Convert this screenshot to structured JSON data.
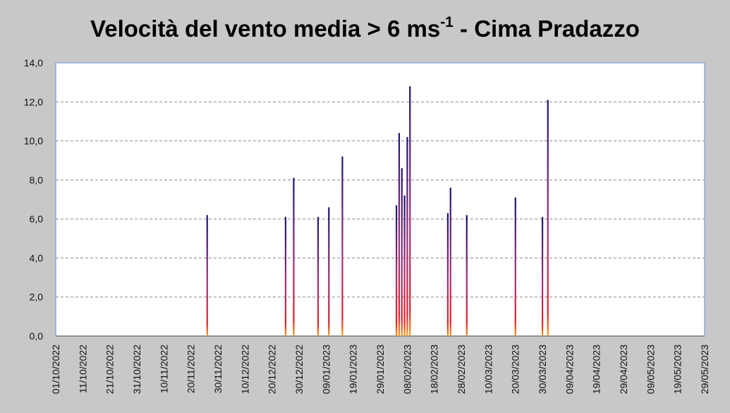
{
  "chart_data": {
    "type": "bar",
    "title": {
      "main": "Velocità del vento media > 6 ms",
      "superscript": "-1",
      "suffix": " - Cima Pradazzo"
    },
    "xlabel": "",
    "ylabel": "",
    "ylim": [
      0,
      14
    ],
    "y_ticks": [
      "0,0",
      "2,0",
      "4,0",
      "6,0",
      "8,0",
      "10,0",
      "12,0",
      "14,0"
    ],
    "x_ticks": [
      "01/10/2022",
      "11/10/2022",
      "21/10/2022",
      "31/10/2022",
      "10/11/2022",
      "20/11/2022",
      "30/11/2022",
      "10/12/2022",
      "20/12/2022",
      "30/12/2022",
      "09/01/2023",
      "19/01/2023",
      "29/01/2023",
      "08/02/2023",
      "18/02/2023",
      "28/02/2023",
      "10/03/2023",
      "20/03/2023",
      "30/03/2023",
      "09/04/2023",
      "19/04/2023",
      "29/04/2023",
      "09/05/2023",
      "19/05/2023",
      "29/05/2023"
    ],
    "x_range": [
      "01/10/2022",
      "29/05/2023"
    ],
    "grid": "horizontal dashed",
    "values": [
      {
        "date": "26/11/2022",
        "value": 6.2
      },
      {
        "date": "25/12/2022",
        "value": 6.1
      },
      {
        "date": "28/12/2022",
        "value": 8.1
      },
      {
        "date": "06/01/2023",
        "value": 6.1
      },
      {
        "date": "10/01/2023",
        "value": 6.6
      },
      {
        "date": "15/01/2023",
        "value": 9.2
      },
      {
        "date": "04/02/2023",
        "value": 6.7
      },
      {
        "date": "05/02/2023",
        "value": 10.4
      },
      {
        "date": "06/02/2023",
        "value": 8.6
      },
      {
        "date": "07/02/2023",
        "value": 7.2
      },
      {
        "date": "08/02/2023",
        "value": 10.2
      },
      {
        "date": "09/02/2023",
        "value": 12.8
      },
      {
        "date": "23/02/2023",
        "value": 6.3
      },
      {
        "date": "24/02/2023",
        "value": 7.6
      },
      {
        "date": "02/03/2023",
        "value": 6.2
      },
      {
        "date": "20/03/2023",
        "value": 7.1
      },
      {
        "date": "30/03/2023",
        "value": 6.1
      },
      {
        "date": "01/04/2023",
        "value": 12.1
      }
    ],
    "colors": {
      "bar_top": "#1a1470",
      "bar_mid": "#a0307a",
      "bar_low": "#e0202a",
      "bar_base": "#f0a020",
      "plot_background": "#ffffff",
      "plot_border": "#8eaadb",
      "grid": "#888888",
      "page_background": "#c8c8c8"
    }
  }
}
